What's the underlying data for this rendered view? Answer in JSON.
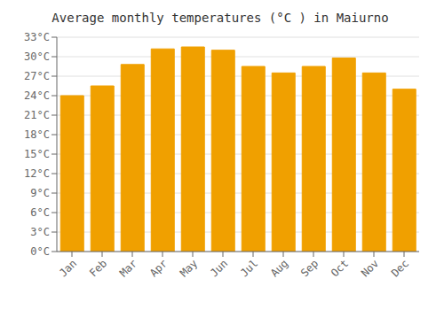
{
  "chart_data": {
    "type": "bar",
    "title": "Average monthly temperatures (°C ) in Maiurno",
    "categories": [
      "Jan",
      "Feb",
      "Mar",
      "Apr",
      "May",
      "Jun",
      "Jul",
      "Aug",
      "Sep",
      "Oct",
      "Nov",
      "Dec"
    ],
    "values": [
      24.0,
      25.5,
      28.8,
      31.2,
      31.5,
      31.0,
      28.5,
      27.5,
      28.5,
      29.8,
      27.5,
      25.0
    ],
    "color": "#F0A000",
    "ylim": [
      0,
      33
    ],
    "yticks": [
      {
        "value": 0,
        "label": "0°C"
      },
      {
        "value": 3,
        "label": "3°C"
      },
      {
        "value": 6,
        "label": "6°C"
      },
      {
        "value": 9,
        "label": "9°C"
      },
      {
        "value": 12,
        "label": "12°C"
      },
      {
        "value": 15,
        "label": "15°C"
      },
      {
        "value": 18,
        "label": "18°C"
      },
      {
        "value": 21,
        "label": "21°C"
      },
      {
        "value": 24,
        "label": "24°C"
      },
      {
        "value": 27,
        "label": "27°C"
      },
      {
        "value": 30,
        "label": "30°C"
      },
      {
        "value": 33,
        "label": "33°C"
      }
    ],
    "grid": true
  }
}
